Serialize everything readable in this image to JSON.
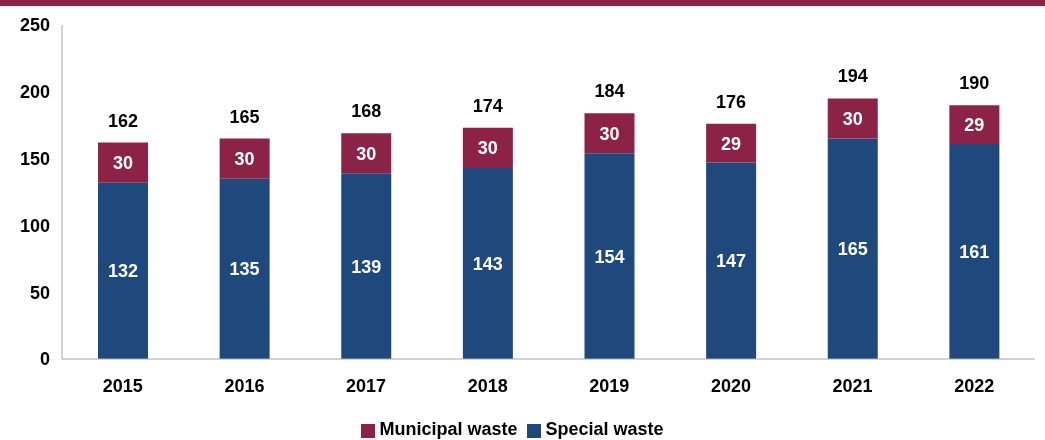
{
  "chart_data": {
    "type": "bar",
    "stacked": true,
    "categories": [
      "2015",
      "2016",
      "2017",
      "2018",
      "2019",
      "2020",
      "2021",
      "2022"
    ],
    "series": [
      {
        "name": "Special waste",
        "color": "#1f497d",
        "values": [
          132,
          135,
          139,
          143,
          154,
          147,
          165,
          161
        ]
      },
      {
        "name": "Municipal waste",
        "color": "#8c2346",
        "values": [
          30,
          30,
          30,
          30,
          30,
          29,
          30,
          29
        ]
      }
    ],
    "ylim": [
      0,
      250
    ],
    "yticks": [
      0,
      50,
      100,
      150,
      200,
      250
    ],
    "data_labels": true,
    "totals": [
      "162",
      "165",
      "168",
      "174",
      "184",
      "176",
      "194",
      "190"
    ],
    "legend": "bottom"
  }
}
